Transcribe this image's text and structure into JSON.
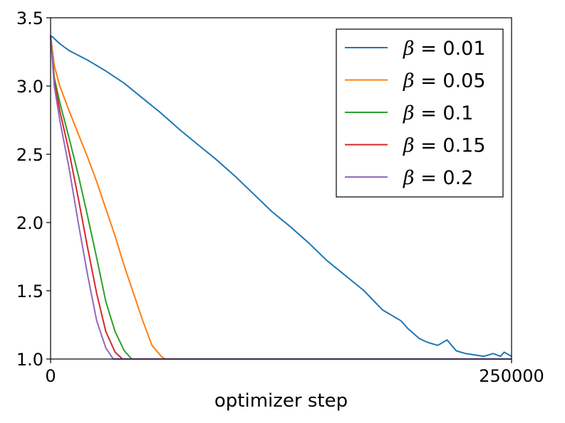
{
  "chart_data": {
    "type": "line",
    "title": "",
    "xlabel": "optimizer step",
    "ylabel": "",
    "xlim": [
      0,
      250000
    ],
    "ylim": [
      1.0,
      3.5
    ],
    "x_ticks": [
      "0",
      "250000"
    ],
    "y_ticks": [
      "1.0",
      "1.5",
      "2.0",
      "2.5",
      "3.0",
      "3.5"
    ],
    "grid": false,
    "legend_position": "top-right",
    "series": [
      {
        "name": "β = 0.01",
        "legend_symbol": "β",
        "legend_value": "0.01",
        "color": "#1f77b4",
        "x": [
          0,
          1000,
          5000,
          10000,
          20000,
          30000,
          40000,
          50000,
          60000,
          70000,
          80000,
          90000,
          100000,
          110000,
          120000,
          130000,
          140000,
          150000,
          160000,
          170000,
          180000,
          190000,
          192000,
          194000,
          200000,
          203000,
          205000,
          210000,
          215000,
          220000,
          225000,
          230000,
          235000,
          240000,
          244000,
          246000,
          250000
        ],
        "y": [
          3.37,
          3.36,
          3.31,
          3.26,
          3.19,
          3.11,
          3.02,
          2.91,
          2.8,
          2.68,
          2.57,
          2.46,
          2.34,
          2.21,
          2.08,
          1.97,
          1.85,
          1.72,
          1.61,
          1.5,
          1.36,
          1.28,
          1.25,
          1.22,
          1.15,
          1.13,
          1.12,
          1.1,
          1.14,
          1.06,
          1.04,
          1.03,
          1.02,
          1.04,
          1.02,
          1.05,
          1.02
        ]
      },
      {
        "name": "β = 0.05",
        "legend_symbol": "β",
        "legend_value": "0.05",
        "color": "#ff7f0e",
        "x": [
          0,
          2000,
          5000,
          10000,
          15000,
          20000,
          25000,
          30000,
          35000,
          40000,
          45000,
          50000,
          55000,
          60000,
          62000,
          70000,
          80000,
          100000,
          150000,
          200000,
          250000
        ],
        "y": [
          3.37,
          3.15,
          3.0,
          2.82,
          2.65,
          2.48,
          2.3,
          2.1,
          1.9,
          1.68,
          1.48,
          1.28,
          1.1,
          1.02,
          1.0,
          1.0,
          1.0,
          1.0,
          1.0,
          1.0,
          1.0
        ]
      },
      {
        "name": "β = 0.1",
        "legend_symbol": "β",
        "legend_value": "0.1",
        "color": "#2ca02c",
        "x": [
          0,
          2000,
          5000,
          10000,
          15000,
          20000,
          25000,
          30000,
          35000,
          40000,
          44000,
          47000,
          60000,
          100000,
          150000,
          200000,
          250000
        ],
        "y": [
          3.37,
          3.06,
          2.88,
          2.62,
          2.35,
          2.05,
          1.74,
          1.42,
          1.2,
          1.06,
          1.0,
          1.0,
          1.0,
          1.0,
          1.0,
          1.0,
          1.0
        ]
      },
      {
        "name": "β = 0.15",
        "legend_symbol": "β",
        "legend_value": "0.15",
        "color": "#d62728",
        "x": [
          0,
          2000,
          5000,
          10000,
          15000,
          20000,
          25000,
          30000,
          35000,
          39000,
          42000,
          60000,
          100000,
          150000,
          200000,
          250000
        ],
        "y": [
          3.37,
          3.04,
          2.82,
          2.52,
          2.18,
          1.82,
          1.48,
          1.2,
          1.05,
          1.0,
          1.0,
          1.0,
          1.0,
          1.0,
          1.0,
          1.0
        ]
      },
      {
        "name": "β = 0.2",
        "legend_symbol": "β",
        "legend_value": "0.2",
        "color": "#9467bd",
        "x": [
          0,
          2000,
          5000,
          10000,
          15000,
          20000,
          25000,
          30000,
          34000,
          36000,
          60000,
          100000,
          150000,
          200000,
          250000
        ],
        "y": [
          3.37,
          3.0,
          2.75,
          2.4,
          2.0,
          1.62,
          1.28,
          1.08,
          1.0,
          1.0,
          1.0,
          1.0,
          1.0,
          1.0,
          1.0
        ]
      }
    ]
  }
}
